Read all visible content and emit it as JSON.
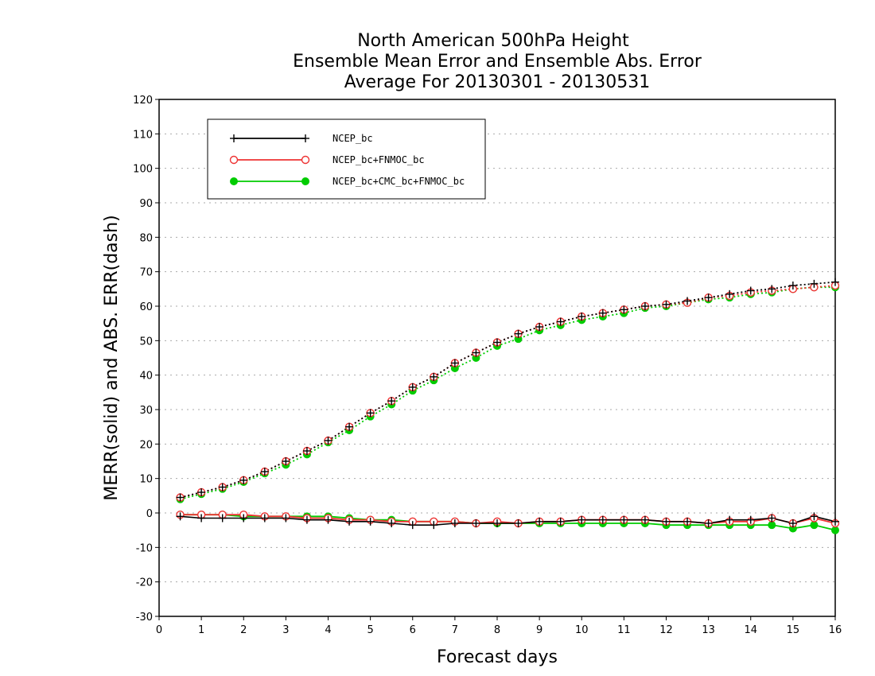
{
  "chart_data": {
    "type": "line",
    "title": [
      "North American 500hPa Height",
      "Ensemble Mean Error and Ensemble Abs. Error",
      "Average For 20130301 - 20130531"
    ],
    "xlabel": "Forecast days",
    "ylabel": "MERR(solid) and ABS. ERR(dash)",
    "xlim": [
      0,
      16
    ],
    "ylim": [
      -30,
      120
    ],
    "xticks": [
      0,
      1,
      2,
      3,
      4,
      5,
      6,
      7,
      8,
      9,
      10,
      11,
      12,
      13,
      14,
      15,
      16
    ],
    "yticks": [
      -30,
      -20,
      -10,
      0,
      10,
      20,
      30,
      40,
      50,
      60,
      70,
      80,
      90,
      100,
      110,
      120
    ],
    "grid": "horizontal dotted",
    "legend_position": "top-left",
    "x": [
      0.5,
      1,
      1.5,
      2,
      2.5,
      3,
      3.5,
      4,
      4.5,
      5,
      5.5,
      6,
      6.5,
      7,
      7.5,
      8,
      8.5,
      9,
      9.5,
      10,
      10.5,
      11,
      11.5,
      12,
      12.5,
      13,
      13.5,
      14,
      14.5,
      15,
      15.5,
      16
    ],
    "series": [
      {
        "name": "NCEP_bc",
        "color": "#000000",
        "marker": "plus",
        "merr": [
          -1,
          -1.5,
          -1.5,
          -1.5,
          -1.5,
          -1.5,
          -2,
          -2,
          -2.5,
          -2.5,
          -3,
          -3.5,
          -3.5,
          -3,
          -3,
          -3,
          -3,
          -2.5,
          -2.5,
          -2,
          -2,
          -2,
          -2,
          -2.5,
          -2.5,
          -3,
          -2,
          -2,
          -1.5,
          -3,
          -1,
          -2.5
        ],
        "abs_err": [
          4.5,
          6,
          7.5,
          9.5,
          12,
          15,
          18,
          21,
          25,
          29,
          32.5,
          36.5,
          39.5,
          43.5,
          46.5,
          49.5,
          52,
          54,
          55.5,
          57,
          58,
          59,
          60,
          60.5,
          61.5,
          62.5,
          63.5,
          64.5,
          65,
          66,
          66.5,
          67
        ]
      },
      {
        "name": "NCEP_bc+FNMOC_bc",
        "color": "#ee3333",
        "marker": "open-circle",
        "merr": [
          -0.5,
          -0.5,
          -0.5,
          -0.5,
          -1,
          -1,
          -1.5,
          -1.5,
          -2,
          -2,
          -2.5,
          -2.5,
          -2.5,
          -2.5,
          -3,
          -2.5,
          -3,
          -2.5,
          -2.5,
          -2,
          -2,
          -2,
          -2,
          -2.5,
          -2.5,
          -3,
          -2.5,
          -2.5,
          -1.5,
          -3,
          -1.5,
          -3
        ],
        "abs_err": [
          4.5,
          6,
          7.5,
          9.5,
          12,
          15,
          18,
          21,
          25,
          29,
          32.5,
          36.5,
          39.5,
          43.5,
          46.5,
          49.5,
          52,
          54,
          55.5,
          57,
          58,
          59,
          60,
          60.5,
          61,
          62.5,
          63,
          64,
          64.5,
          65,
          65.5,
          66
        ]
      },
      {
        "name": "NCEP_bc+CMC_bc+FNMOC_bc",
        "color": "#00cc00",
        "marker": "filled-circle",
        "merr": [
          -0.5,
          -0.5,
          -0.5,
          -1,
          -1,
          -1,
          -1,
          -1,
          -1.5,
          -2,
          -2,
          -2.5,
          -2.5,
          -2.5,
          -3,
          -3,
          -3,
          -3,
          -3,
          -3,
          -3,
          -3,
          -3,
          -3.5,
          -3.5,
          -3.5,
          -3.5,
          -3.5,
          -3.5,
          -4.5,
          -3.5,
          -5
        ],
        "abs_err": [
          4,
          5.5,
          7,
          9,
          11.5,
          14,
          17,
          20.5,
          24,
          28,
          31.5,
          35.5,
          38.5,
          42,
          45,
          48.5,
          50.5,
          53,
          54.5,
          56,
          57,
          58,
          59.5,
          60,
          61,
          62,
          62.5,
          63.5,
          64,
          65,
          65.5,
          65.5
        ]
      }
    ]
  }
}
